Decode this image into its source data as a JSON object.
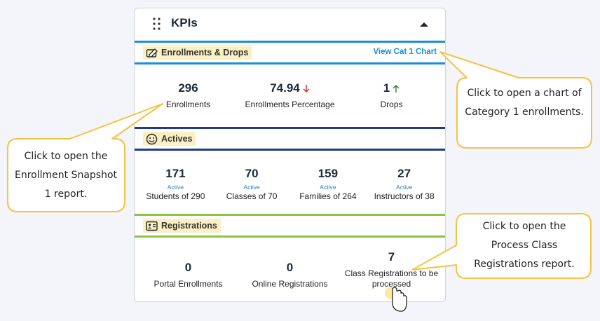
{
  "widget": {
    "title": "KPIs"
  },
  "sections": [
    {
      "title": "Enrollments & Drops",
      "link": "View Cat 1 Chart",
      "kpis": [
        {
          "value": 296,
          "label": "Enrollments"
        },
        {
          "value": 74.94,
          "label": "Enrollments Percentage",
          "trend": "down"
        },
        {
          "value": 1,
          "label": "Drops",
          "trend": "up"
        }
      ]
    },
    {
      "title": "Actives",
      "kpis": [
        {
          "value": 171,
          "sublabel": "Active",
          "label": "Students of 290"
        },
        {
          "value": 70,
          "sublabel": "Active",
          "label": "Classes of 70"
        },
        {
          "value": 159,
          "sublabel": "Active",
          "label": "Families of 264"
        },
        {
          "value": 27,
          "sublabel": "Active",
          "label": "Instructors of 38"
        }
      ]
    },
    {
      "title": "Registrations",
      "kpis": [
        {
          "value": 0,
          "label": "Portal Enrollments"
        },
        {
          "value": 0,
          "label": "Online Registrations"
        },
        {
          "value": 7,
          "label": "Class Registrations to be processed"
        }
      ]
    }
  ],
  "callouts": [
    {
      "text": "Click to open a chart of Category 1 enrollments."
    },
    {
      "text": "Click to open the Enrollment Snapshot 1 report."
    },
    {
      "text": "Click to open the Process Class Registrations report."
    }
  ]
}
